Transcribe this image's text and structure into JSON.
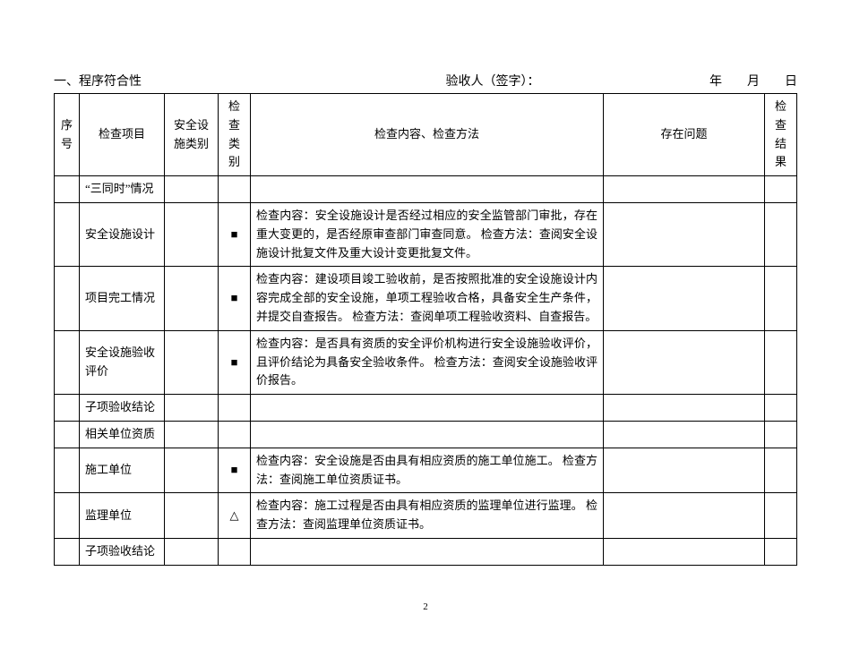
{
  "header": {
    "section_title": "一、程序符合性",
    "signer_label": "验收人（签字）：",
    "date_label": "年　　月　　日"
  },
  "columns": {
    "seq": "序号",
    "item": "检查项目",
    "facility_category": "安全设施类别",
    "check_category": "检查类别",
    "content_method": "检查内容、检查方法",
    "issues": "存在问题",
    "result": "检查结果"
  },
  "marks": {
    "square": "■",
    "triangle": "△"
  },
  "rows": [
    {
      "item": "“三同时”情况",
      "mark": "",
      "content": ""
    },
    {
      "item": "安全设施设计",
      "mark": "■",
      "content": "检查内容：安全设施设计是否经过相应的安全监管部门审批，存在重大变更的，是否经原审查部门审查同意。 检查方法：查阅安全设施设计批复文件及重大设计变更批复文件。"
    },
    {
      "item": "项目完工情况",
      "mark": "■",
      "content": "检查内容：建设项目竣工验收前，是否按照批准的安全设施设计内容完成全部的安全设施，单项工程验收合格，具备安全生产条件，并提交自查报告。 检查方法：查阅单项工程验收资料、自查报告。"
    },
    {
      "item": "安全设施验收评价",
      "mark": "■",
      "content": "检查内容：是否具有资质的安全评价机构进行安全设施验收评价，且评价结论为具备安全验收条件。 检查方法：查阅安全设施验收评价报告。"
    },
    {
      "item": "子项验收结论",
      "mark": "",
      "content": ""
    },
    {
      "item": "相关单位资质",
      "mark": "",
      "content": ""
    },
    {
      "item": "施工单位",
      "mark": "■",
      "content": "检查内容：安全设施是否由具有相应资质的施工单位施工。 检查方法：查阅施工单位资质证书。"
    },
    {
      "item": "监理单位",
      "mark": "△",
      "content": "检查内容：施工过程是否由具有相应资质的监理单位进行监理。 检查方法：查阅监理单位资质证书。"
    },
    {
      "item": "子项验收结论",
      "mark": "",
      "content": ""
    }
  ],
  "page_number": "2"
}
